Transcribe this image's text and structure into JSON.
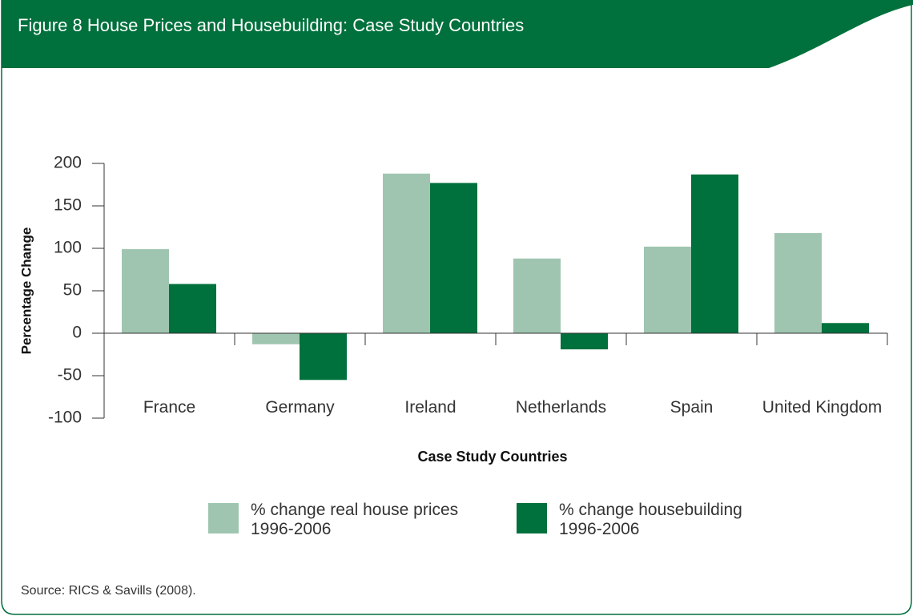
{
  "chart_data": {
    "type": "bar",
    "title": "Figure 8  House Prices and Housebuilding: Case Study Countries",
    "y_label": "Percentage Change",
    "x_label": "Case Study Countries",
    "source": "Source: RICS & Savills (2008).",
    "categories": [
      "France",
      "Germany",
      "Ireland",
      "Netherlands",
      "Spain",
      "United Kingdom"
    ],
    "series": [
      {
        "name": "% change real house prices 1996-2006",
        "color": "#9fc5b0",
        "values": [
          99,
          -13,
          188,
          88,
          102,
          118
        ]
      },
      {
        "name": "% change housebuilding 1996-2006",
        "color": "#00703c",
        "values": [
          58,
          -55,
          177,
          -19,
          187,
          12
        ]
      }
    ],
    "ylim": [
      -100,
      200
    ],
    "yticks": [
      -100,
      -50,
      0,
      50,
      100,
      150,
      200
    ]
  }
}
